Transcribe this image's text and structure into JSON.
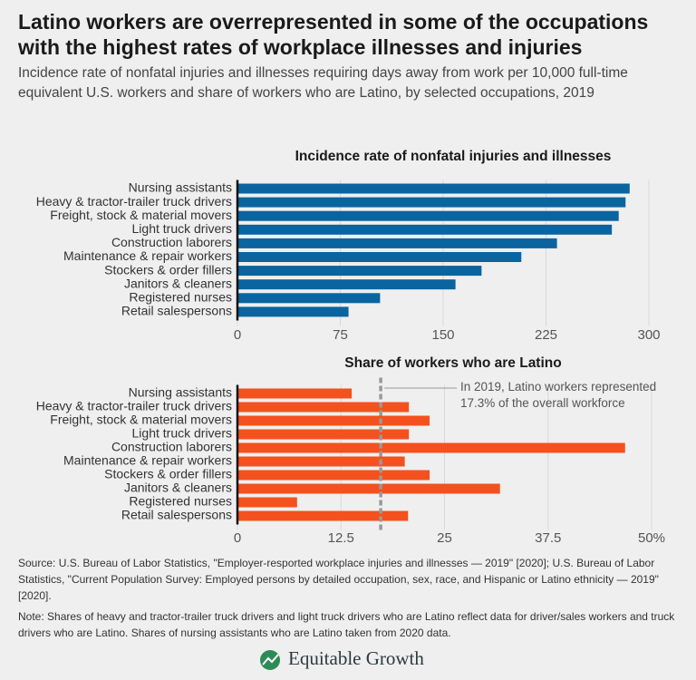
{
  "header": {
    "title": "Latino workers are overrepresented in some of the occupations with the highest rates of workplace illnesses and injuries",
    "subtitle": "Incidence rate of nonfatal injuries and illnesses requiring days away from work per 10,000 full-time equivalent U.S. workers and share of workers who are Latino, by selected occupations, 2019"
  },
  "chart_data": [
    {
      "type": "bar",
      "orientation": "horizontal",
      "title": "Incidence rate of nonfatal injuries and illnesses",
      "categories": [
        "Nursing assistants",
        "Heavy & tractor-trailer truck drivers",
        "Freight, stock & material movers",
        "Light truck drivers",
        "Construction laborers",
        "Maintenance & repair workers",
        "Stockers & order fillers",
        "Janitors & cleaners",
        "Registered nurses",
        "Retail salespersons"
      ],
      "values": [
        286,
        283,
        278,
        273,
        233,
        207,
        178,
        159,
        104,
        81
      ],
      "color": "#0a64a0",
      "xlim": [
        0,
        300
      ],
      "xticks": [
        0,
        75,
        150,
        225,
        300
      ],
      "grid": true
    },
    {
      "type": "bar",
      "orientation": "horizontal",
      "title": "Share of workers who are Latino",
      "categories": [
        "Nursing assistants",
        "Heavy & tractor-trailer truck drivers",
        "Freight, stock & material movers",
        "Light truck drivers",
        "Construction laborers",
        "Maintenance & repair workers",
        "Stockers & order fillers",
        "Janitors & cleaners",
        "Registered nurses",
        "Retail salespersons"
      ],
      "values": [
        13.8,
        20.7,
        23.2,
        20.7,
        46.8,
        20.2,
        23.2,
        31.7,
        7.2,
        20.6
      ],
      "color": "#f4511e",
      "xlim": [
        0,
        50
      ],
      "xticks": [
        0,
        12.5,
        25,
        37.5,
        {
          "value": 50,
          "label": "50%"
        }
      ],
      "grid": true,
      "reference_line": {
        "value": 17.3,
        "color": "#999999",
        "label": "In 2019, Latino workers represented 17.3% of the overall workforce"
      }
    }
  ],
  "footer": {
    "source": "Source: U.S. Bureau of Labor Statistics, \"Employer-resported workplace injuries and illnesses — 2019\" [2020]; U.S. Bureau of Labor Statistics, \"Current Population Survey: Employed persons by detailed occupation, sex, race, and Hispanic or Latino ethnicity — 2019\" [2020].",
    "note": "Note: Shares of heavy and tractor-trailer truck drivers and light truck drivers who are Latino reflect data for driver/sales workers and truck drivers who are Latino. Shares of nursing assistants who are Latino taken from 2020 data.",
    "logo": "Equitable Growth"
  }
}
